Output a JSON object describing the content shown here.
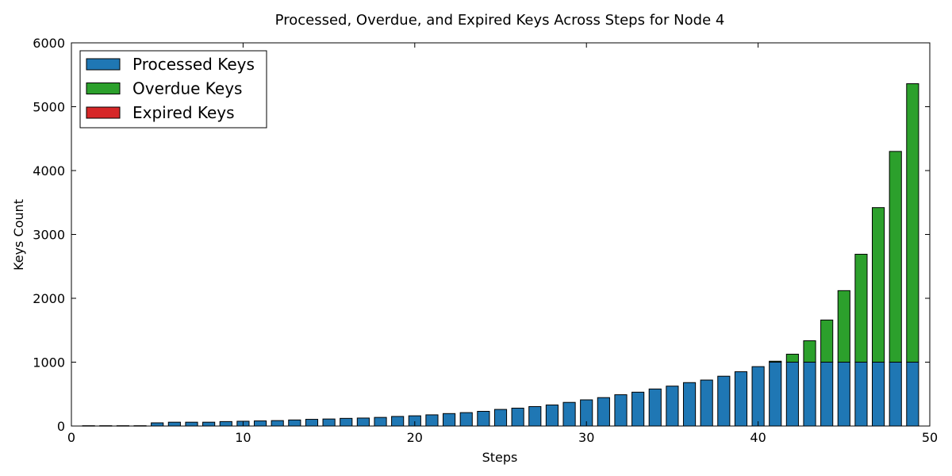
{
  "chart_data": {
    "type": "bar",
    "stacked": true,
    "title": "Processed, Overdue, and Expired Keys Across Steps for Node 4",
    "xlabel": "Steps",
    "ylabel": "Keys Count",
    "xlim": [
      0,
      50
    ],
    "ylim": [
      0,
      6000
    ],
    "xticks": [
      0,
      10,
      20,
      30,
      40,
      50
    ],
    "yticks": [
      0,
      1000,
      2000,
      3000,
      4000,
      5000,
      6000
    ],
    "grid": false,
    "legend_position": "top-left",
    "x": [
      1,
      2,
      3,
      4,
      5,
      6,
      7,
      8,
      9,
      10,
      11,
      12,
      13,
      14,
      15,
      16,
      17,
      18,
      19,
      20,
      21,
      22,
      23,
      24,
      25,
      26,
      27,
      28,
      29,
      30,
      31,
      32,
      33,
      34,
      35,
      36,
      37,
      38,
      39,
      40,
      41,
      42,
      43,
      44,
      45,
      46,
      47,
      48,
      49
    ],
    "series": [
      {
        "name": "Processed Keys",
        "color": "#1f77b4",
        "values": [
          5,
          5,
          5,
          5,
          50,
          60,
          60,
          60,
          70,
          75,
          80,
          85,
          95,
          105,
          110,
          120,
          125,
          135,
          150,
          160,
          175,
          195,
          210,
          230,
          260,
          280,
          305,
          330,
          370,
          410,
          445,
          490,
          530,
          580,
          625,
          680,
          720,
          780,
          850,
          930,
          1000,
          1000,
          1000,
          1000,
          1000,
          1000,
          1000,
          1000,
          1000
        ]
      },
      {
        "name": "Overdue Keys",
        "color": "#2ca02c",
        "values": [
          0,
          0,
          0,
          0,
          0,
          0,
          0,
          0,
          0,
          0,
          0,
          0,
          0,
          0,
          0,
          0,
          0,
          0,
          0,
          0,
          0,
          0,
          0,
          0,
          0,
          0,
          0,
          0,
          0,
          0,
          0,
          0,
          0,
          0,
          0,
          0,
          0,
          0,
          0,
          0,
          15,
          125,
          335,
          660,
          1120,
          1690,
          2420,
          3300,
          4360
        ]
      },
      {
        "name": "Expired Keys",
        "color": "#d62728",
        "values": [
          0,
          0,
          0,
          0,
          0,
          0,
          0,
          0,
          0,
          0,
          0,
          0,
          0,
          0,
          0,
          0,
          0,
          0,
          0,
          0,
          0,
          0,
          0,
          0,
          0,
          0,
          0,
          0,
          0,
          0,
          0,
          0,
          0,
          0,
          0,
          0,
          0,
          0,
          0,
          0,
          0,
          0,
          0,
          0,
          0,
          0,
          0,
          0,
          0
        ]
      }
    ]
  }
}
